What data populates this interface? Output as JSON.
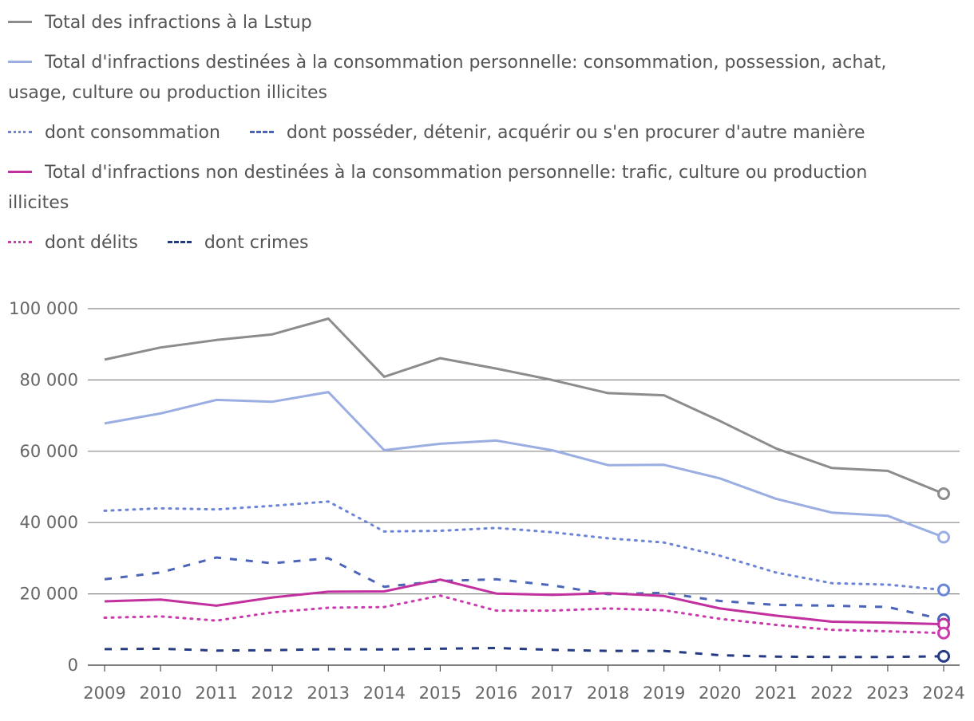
{
  "chart_data": {
    "type": "line",
    "title": "",
    "xlabel": "",
    "ylabel": "",
    "x": [
      2009,
      2010,
      2011,
      2012,
      2013,
      2014,
      2015,
      2016,
      2017,
      2018,
      2019,
      2020,
      2021,
      2022,
      2023,
      2024
    ],
    "ylim": [
      0,
      100000
    ],
    "y_ticks": [
      {
        "value": 0,
        "label": "0"
      },
      {
        "value": 20000,
        "label": "20 000"
      },
      {
        "value": 40000,
        "label": "40 000"
      },
      {
        "value": 60000,
        "label": "60 000"
      },
      {
        "value": 80000,
        "label": "80 000"
      },
      {
        "value": 100000,
        "label": "100 000"
      }
    ],
    "grid": true,
    "legend_position": "top",
    "series": [
      {
        "name": "Total des infractions à la Lstup",
        "color": "#8c8c8c",
        "style": "solid",
        "values": [
          85700,
          89100,
          91200,
          92800,
          97200,
          80900,
          86100,
          83200,
          80000,
          76300,
          75700,
          68500,
          60800,
          55300,
          54500,
          48100
        ]
      },
      {
        "name": "Total d'infractions destinées à la consommation personnelle: consommation, possession, achat, usage, culture ou production illicites",
        "color": "#9aaee2",
        "style": "solid",
        "values": [
          67800,
          70600,
          74400,
          73900,
          76600,
          60300,
          62100,
          63000,
          60300,
          56100,
          56200,
          52400,
          46700,
          42800,
          41900,
          35900
        ]
      },
      {
        "name": "dont consommation",
        "color": "#6b84d6",
        "style": "dotted",
        "values": [
          43300,
          44000,
          43700,
          44700,
          45900,
          37500,
          37700,
          38500,
          37300,
          35600,
          34400,
          30700,
          26000,
          23000,
          22600,
          21100
        ]
      },
      {
        "name": "dont posséder, détenir, acquérir ou s'en procurer d'autre manière",
        "color": "#4b64b8",
        "style": "dashed",
        "values": [
          24100,
          26000,
          30200,
          28600,
          30000,
          22000,
          23600,
          24100,
          22400,
          19900,
          20300,
          18000,
          16900,
          16700,
          16300,
          12800
        ]
      },
      {
        "name": "Total d'infractions non destinées à la consommation personnelle: trafic, culture ou production illicites",
        "color": "#c2309f",
        "style": "solid",
        "values": [
          17900,
          18400,
          16700,
          19000,
          20600,
          20700,
          24000,
          20100,
          19700,
          20200,
          19400,
          15900,
          13900,
          12200,
          11900,
          11500
        ]
      },
      {
        "name": "dont délits",
        "color": "#cc3aad",
        "style": "dotted",
        "values": [
          13300,
          13700,
          12500,
          14800,
          16100,
          16300,
          19500,
          15300,
          15300,
          15900,
          15400,
          13000,
          11300,
          9900,
          9500,
          9000
        ]
      },
      {
        "name": "dont crimes",
        "color": "#253a85",
        "style": "dashed",
        "values": [
          4500,
          4600,
          4100,
          4200,
          4500,
          4400,
          4600,
          4800,
          4300,
          4000,
          4000,
          2800,
          2400,
          2300,
          2300,
          2500
        ]
      }
    ]
  }
}
